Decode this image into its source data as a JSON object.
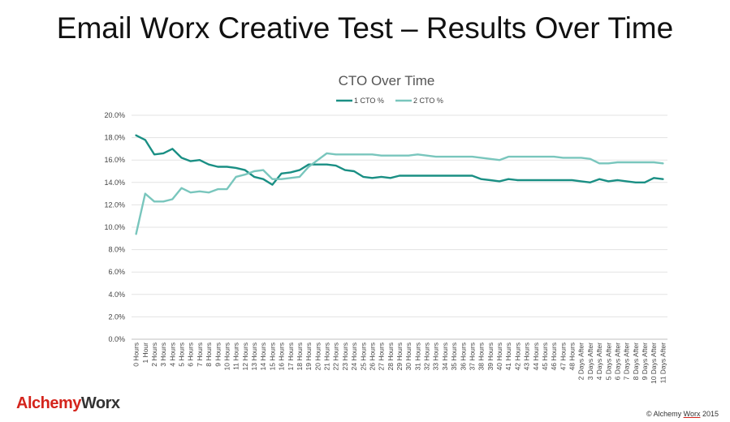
{
  "slide": {
    "title": "Email Worx Creative Test – Results Over Time",
    "logo_part1": "Alchemy",
    "logo_part2": "Worx",
    "copyright_prefix": "© Alchemy",
    "copyright_brand": "Worx",
    "copyright_year": "2015"
  },
  "colors": {
    "series1": "#1a8f84",
    "series2": "#79c6bd",
    "grid": "#e3e3e3",
    "logo_red": "#d4241c"
  },
  "chart_data": {
    "type": "line",
    "title": "CTO Over Time",
    "xlabel": "",
    "ylabel": "",
    "ylim": [
      0,
      20
    ],
    "yticks": [
      "0.0%",
      "2.0%",
      "4.0%",
      "6.0%",
      "8.0%",
      "10.0%",
      "12.0%",
      "14.0%",
      "16.0%",
      "18.0%",
      "20.0%"
    ],
    "grid": true,
    "legend": "top-center",
    "categories": [
      "0 Hours",
      "1 Hour",
      "2 Hours",
      "3 Hours",
      "4 Hours",
      "5 Hours",
      "6 Hours",
      "7 Hours",
      "8 Hours",
      "9 Hours",
      "10 Hours",
      "11 Hours",
      "12 Hours",
      "13 Hours",
      "14 Hours",
      "15 Hours",
      "16 Hours",
      "17 Hours",
      "18 Hours",
      "19 Hours",
      "20 Hours",
      "21 Hours",
      "22 Hours",
      "23 Hours",
      "24 Hours",
      "25 Hours",
      "26 Hours",
      "27 Hours",
      "28 Hours",
      "29 Hours",
      "30 Hours",
      "31 Hours",
      "32 Hours",
      "33 Hours",
      "34 Hours",
      "35 Hours",
      "36 Hours",
      "37 Hours",
      "38 Hours",
      "39 Hours",
      "40 Hours",
      "41 Hours",
      "42 Hours",
      "43 Hours",
      "44 Hours",
      "45 Hours",
      "46 Hours",
      "47 Hours",
      "48 Hours",
      "2 Days After",
      "3 Days After",
      "4 Days After",
      "5 Days After",
      "6 Days After",
      "7 Days After",
      "8 Days After",
      "9 Days After",
      "10 Days After",
      "11 Days After"
    ],
    "series": [
      {
        "name": "1 CTO %",
        "values": [
          18.2,
          17.8,
          16.5,
          16.6,
          17.0,
          16.2,
          15.9,
          16.0,
          15.6,
          15.4,
          15.4,
          15.3,
          15.1,
          14.5,
          14.3,
          13.8,
          14.8,
          14.9,
          15.1,
          15.6,
          15.6,
          15.6,
          15.5,
          15.1,
          15.0,
          14.5,
          14.4,
          14.5,
          14.4,
          14.6,
          14.6,
          14.6,
          14.6,
          14.6,
          14.6,
          14.6,
          14.6,
          14.6,
          14.3,
          14.2,
          14.1,
          14.3,
          14.2,
          14.2,
          14.2,
          14.2,
          14.2,
          14.2,
          14.2,
          14.1,
          14.0,
          14.3,
          14.1,
          14.2,
          14.1,
          14.0,
          14.0,
          14.4,
          14.3
        ]
      },
      {
        "name": "2 CTO %",
        "values": [
          9.4,
          13.0,
          12.3,
          12.3,
          12.5,
          13.5,
          13.1,
          13.2,
          13.1,
          13.4,
          13.4,
          14.5,
          14.7,
          15.0,
          15.1,
          14.3,
          14.3,
          14.4,
          14.5,
          15.4,
          16.0,
          16.6,
          16.5,
          16.5,
          16.5,
          16.5,
          16.5,
          16.4,
          16.4,
          16.4,
          16.4,
          16.5,
          16.4,
          16.3,
          16.3,
          16.3,
          16.3,
          16.3,
          16.2,
          16.1,
          16.0,
          16.3,
          16.3,
          16.3,
          16.3,
          16.3,
          16.3,
          16.2,
          16.2,
          16.2,
          16.1,
          15.7,
          15.7,
          15.8,
          15.8,
          15.8,
          15.8,
          15.8,
          15.7
        ]
      }
    ]
  }
}
